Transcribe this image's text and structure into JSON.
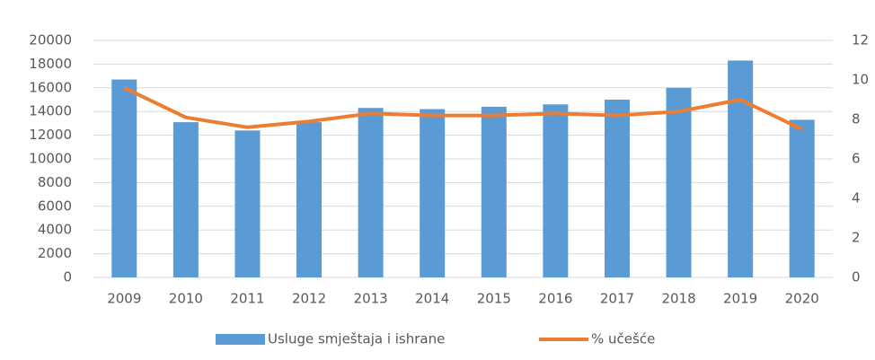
{
  "chart_data": {
    "type": "bar-line",
    "categories": [
      "2009",
      "2010",
      "2011",
      "2012",
      "2013",
      "2014",
      "2015",
      "2016",
      "2017",
      "2018",
      "2019",
      "2020"
    ],
    "series": [
      {
        "name": "Usluge smještaja i ishrane",
        "type": "bar",
        "color": "#5b9bd5",
        "axis": "y",
        "values": [
          16700,
          13100,
          12400,
          13100,
          14300,
          14200,
          14400,
          14600,
          15000,
          16000,
          18300,
          13300
        ]
      },
      {
        "name": "% učešće",
        "type": "line",
        "color": "#ed7d31",
        "axis": "y2",
        "values": [
          9.6,
          8.1,
          7.6,
          7.9,
          8.3,
          8.2,
          8.2,
          8.3,
          8.2,
          8.4,
          9.0,
          7.5
        ]
      }
    ],
    "ylim": [
      0,
      20000
    ],
    "yticks": [
      0,
      2000,
      4000,
      6000,
      8000,
      10000,
      12000,
      14000,
      16000,
      18000,
      20000
    ],
    "y2lim": [
      0,
      12
    ],
    "y2ticks": [
      0,
      2,
      4,
      6,
      8,
      10,
      12
    ],
    "grid": true,
    "legend": "bottom"
  }
}
